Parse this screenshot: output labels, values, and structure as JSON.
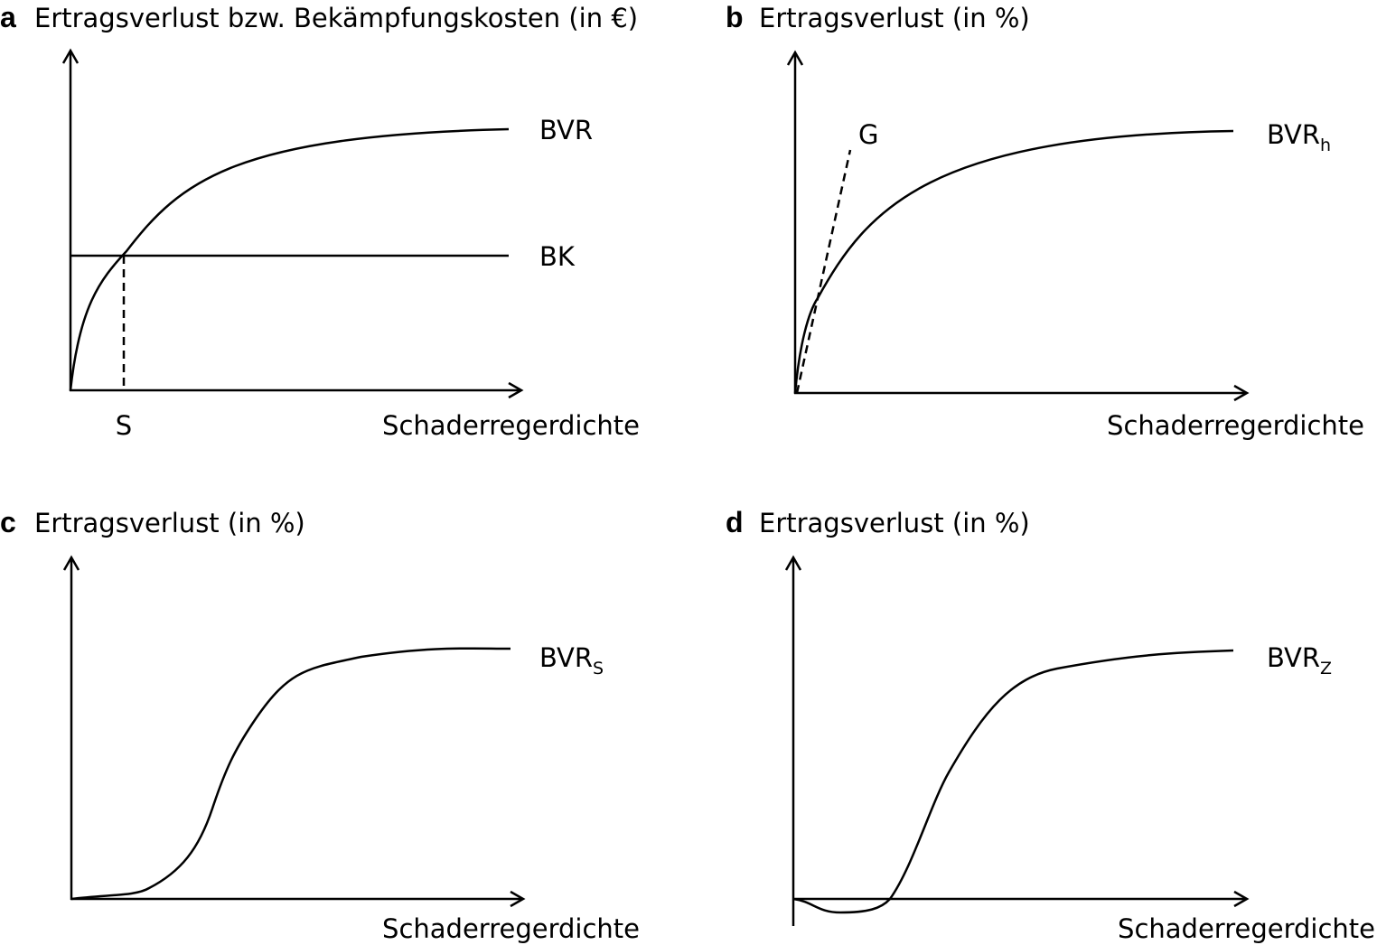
{
  "panels": [
    {
      "letter": "a",
      "title": "Ertragsverlust bzw. Bekämpfungskosten (in €)",
      "x_label": "Schaderregerdichte",
      "labels": [
        {
          "main": "BVR"
        },
        {
          "main": "BK"
        },
        {
          "main": "S"
        }
      ]
    },
    {
      "letter": "b",
      "title": "Ertragsverlust (in %)",
      "x_label": "Schaderregerdichte",
      "labels": [
        {
          "main": "G"
        },
        {
          "main": "BVR",
          "sub": "h"
        }
      ]
    },
    {
      "letter": "c",
      "title": "Ertragsverlust (in %)",
      "x_label": "Schaderregerdichte",
      "labels": [
        {
          "main": "BVR",
          "sub": "S"
        }
      ]
    },
    {
      "letter": "d",
      "title": "Ertragsverlust (in %)",
      "x_label": "Schaderregerdichte",
      "labels": [
        {
          "main": "BVR",
          "sub": "Z"
        }
      ]
    }
  ]
}
